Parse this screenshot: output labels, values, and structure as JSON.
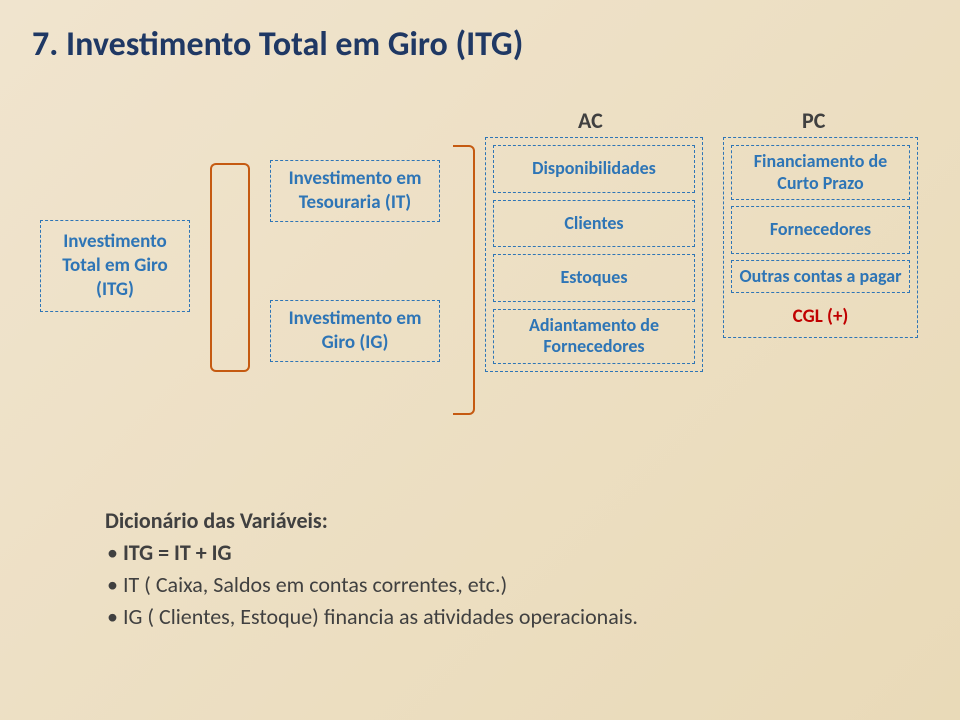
{
  "colors": {
    "title": "#1f3864",
    "box_border": "#2e75b6",
    "box_text": "#2e75b6",
    "bracket": "#c55a11",
    "cgl": "#c00000",
    "body_text": "#404040",
    "bg_start": "#f0e4ce",
    "bg_end": "#e9dab8"
  },
  "title": "7. Investimento Total em Giro (ITG)",
  "left": {
    "itg": "Investimento Total em Giro (ITG)",
    "it": "Investimento em Tesouraria (IT)",
    "ig": "Investimento em Giro (IG)"
  },
  "headers": {
    "ac": "AC",
    "pc": "PC"
  },
  "ac": {
    "disponibilidades": "Disponibilidades",
    "clientes": "Clientes",
    "estoques": "Estoques",
    "adiantamento": "Adiantamento de Fornecedores"
  },
  "pc": {
    "financiamento": "Financiamento de Curto Prazo",
    "fornecedores": "Fornecedores",
    "outras": "Outras contas a pagar",
    "cgl": "CGL (+)"
  },
  "dict": {
    "heading": "Dicionário das Variáveis:",
    "line1": "ITG = IT + IG",
    "line2": "IT ( Caixa, Saldos em contas correntes, etc.)",
    "line3": "IG ( Clientes, Estoque) financia as atividades operacionais."
  }
}
